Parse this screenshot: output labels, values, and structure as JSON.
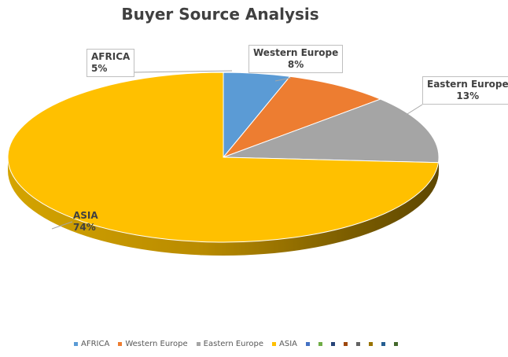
{
  "chart_data": {
    "type": "pie",
    "title": "Buyer Source Analysis",
    "slices": [
      {
        "name": "AFRICA",
        "value": 5,
        "label": "5%",
        "color": "#5b9bd5"
      },
      {
        "name": "Western Europe",
        "value": 8,
        "label": "8%",
        "color": "#ed7d31"
      },
      {
        "name": "Eastern Europe",
        "value": 13,
        "label": "13%",
        "color": "#a5a5a5"
      },
      {
        "name": "ASIA",
        "value": 74,
        "label": "74%",
        "color": "#ffc000"
      }
    ],
    "legend_position": "bottom",
    "legend_extra_markers": [
      "#4472c4",
      "#70ad47",
      "#264478",
      "#9e480e",
      "#636363",
      "#997300",
      "#255e91",
      "#43682b"
    ]
  }
}
